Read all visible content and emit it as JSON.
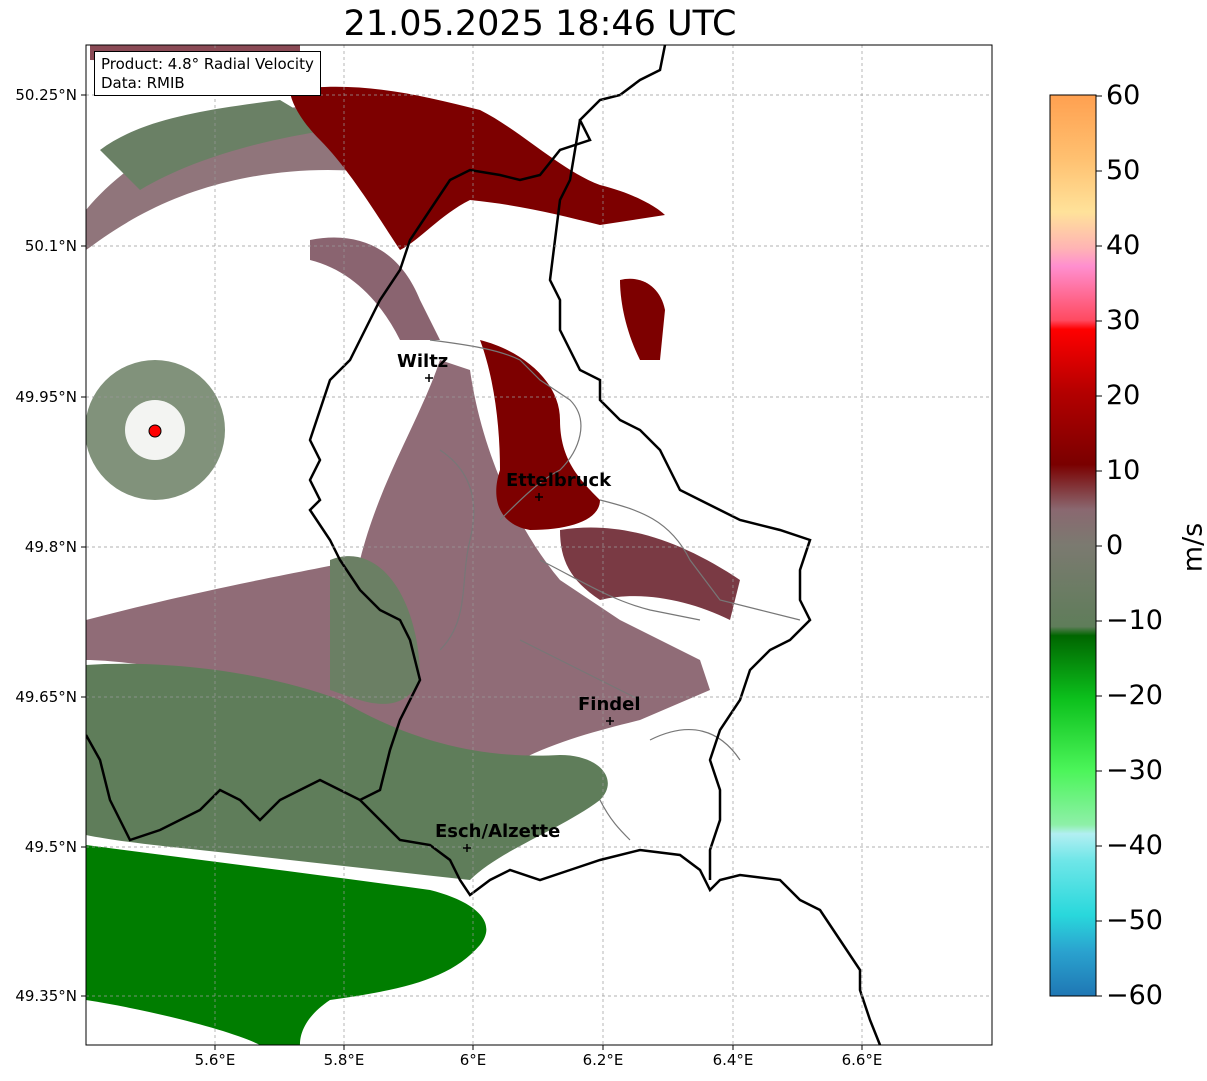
{
  "title": "21.05.2025 18:46 UTC",
  "info": {
    "product": "Product: 4.8° Radial Velocity",
    "data": "Data: RMIB"
  },
  "lat_ticks": [
    "50.25°N",
    "50.1°N",
    "49.95°N",
    "49.8°N",
    "49.65°N",
    "49.5°N",
    "49.35°N"
  ],
  "lon_ticks": [
    "5.6°E",
    "5.8°E",
    "6°E",
    "6.2°E",
    "6.4°E",
    "6.6°E"
  ],
  "cities": [
    {
      "name": "Wiltz"
    },
    {
      "name": "Ettelbruck"
    },
    {
      "name": "Findel"
    },
    {
      "name": "Esch/Alzette"
    }
  ],
  "colorbar": {
    "label": "m/s",
    "ticks": [
      "60",
      "50",
      "40",
      "30",
      "20",
      "10",
      "0",
      "−10",
      "−20",
      "−30",
      "−40",
      "−50",
      "−60"
    ],
    "min": -60,
    "max": 60,
    "colors": {
      "-60": "#1f77b4",
      "-50": "#29d3dc",
      "-40": "#b2eff2",
      "-30": "#4cf55a",
      "-20": "#12cc1e",
      "-10": "#006600",
      "0": "#6d8468",
      "5": "#8a6870",
      "10": "#7a0000",
      "20": "#cc0000",
      "30": "#ff5577",
      "40": "#ff8fcf",
      "50": "#ffcc80",
      "60": "#ffa050"
    }
  },
  "colors": {
    "green_dark": "#007d00",
    "green_gray": "#5f7d5a",
    "mauve": "#8a6470",
    "dark_red": "#7d0000",
    "radar_site": "#ff0000"
  }
}
